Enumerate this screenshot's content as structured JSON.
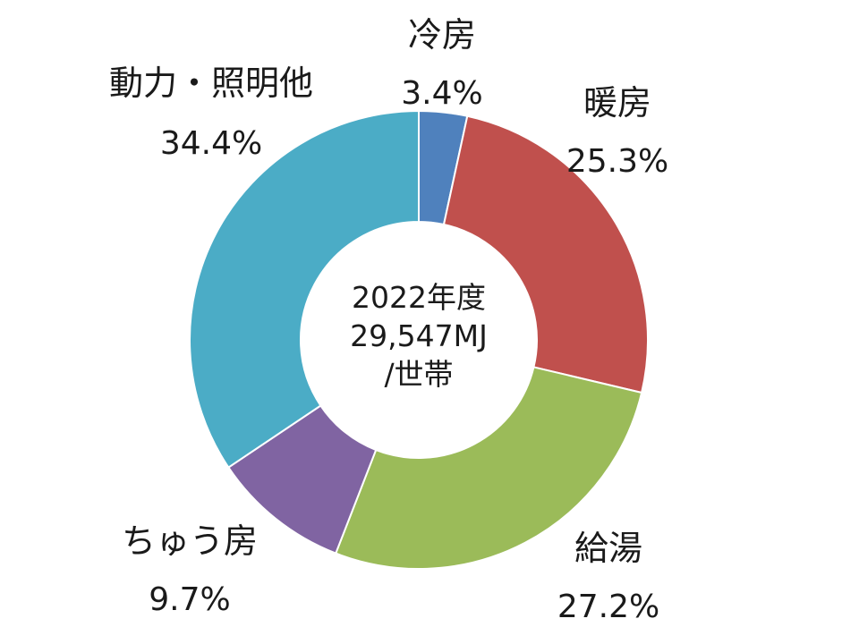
{
  "chart_data": {
    "type": "pie",
    "donut": true,
    "start_angle_deg": 0,
    "direction": "clockwise",
    "center_text": [
      "2022年度",
      "29,547MJ",
      "/世帯"
    ],
    "slices": [
      {
        "label": "冷房",
        "value": 3.4,
        "value_label": "3.4%",
        "color": "#4f81bd"
      },
      {
        "label": "暖房",
        "value": 25.3,
        "value_label": "25.3%",
        "color": "#c0504d"
      },
      {
        "label": "給湯",
        "value": 27.2,
        "value_label": "27.2%",
        "color": "#9bbb59"
      },
      {
        "label": "ちゅう房",
        "value": 9.7,
        "value_label": "9.7%",
        "color": "#8064a2"
      },
      {
        "label": "動力・照明他",
        "value": 34.4,
        "value_label": "34.4%",
        "color": "#4bacc6"
      }
    ]
  }
}
